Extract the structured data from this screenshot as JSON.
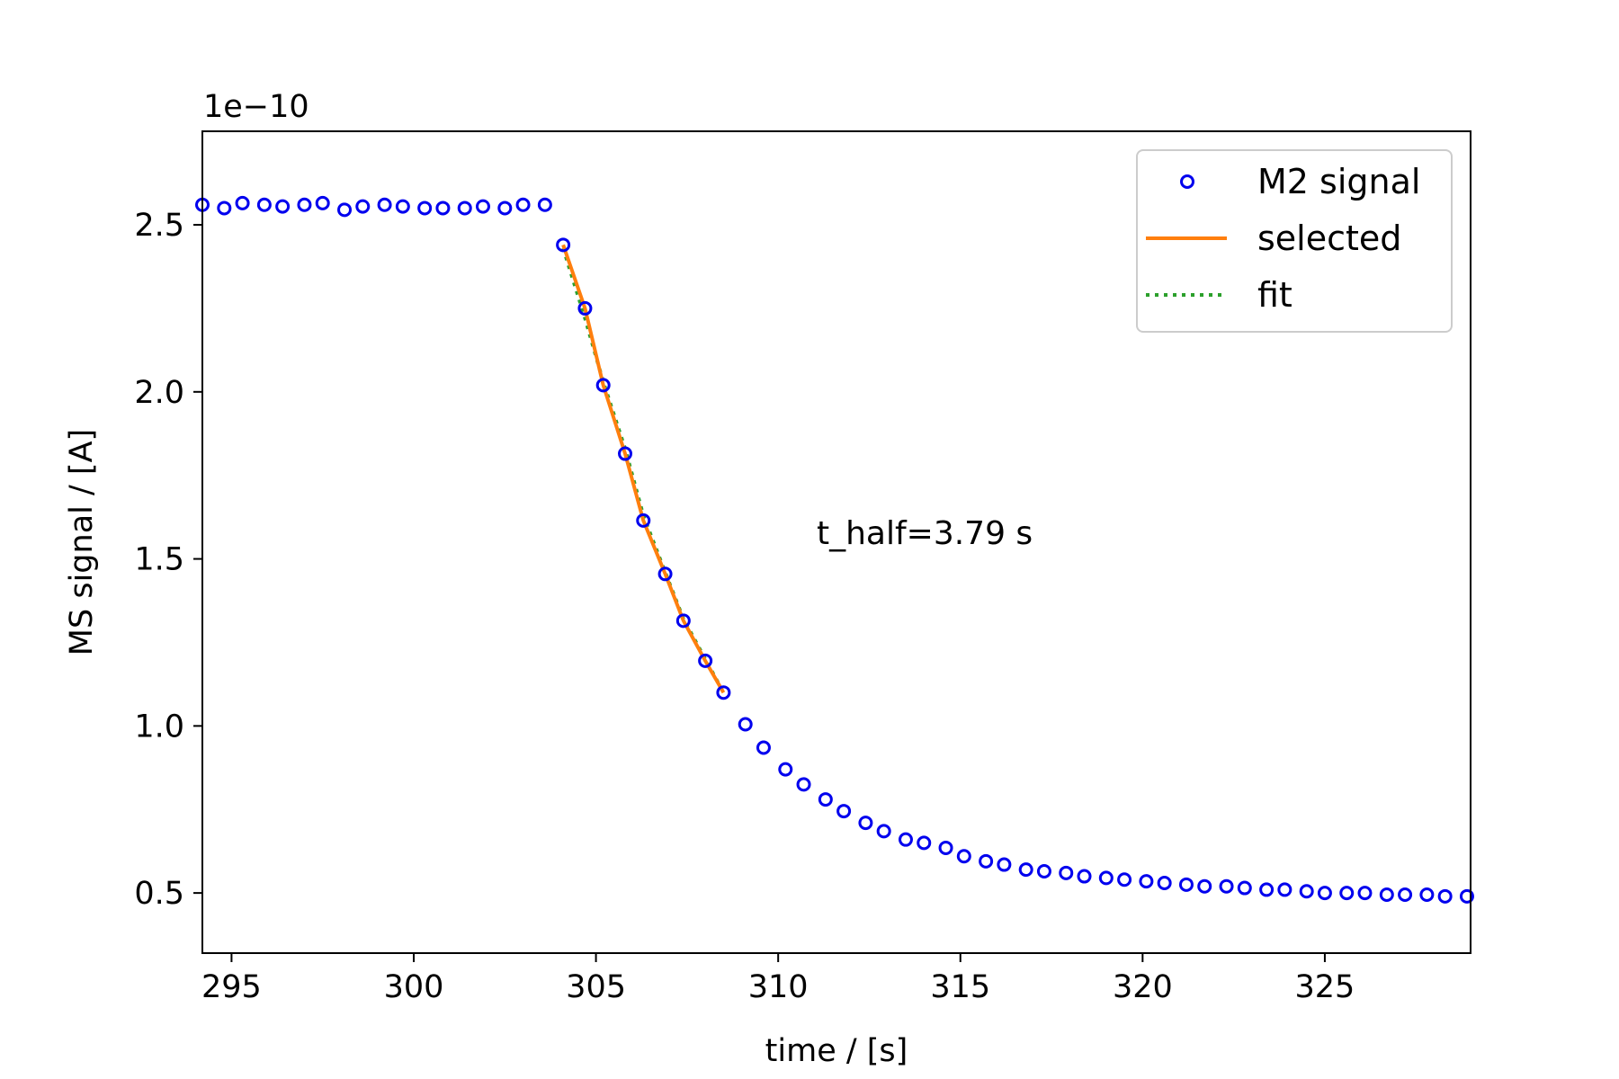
{
  "chart_data": {
    "type": "scatter",
    "title": "",
    "xlabel": "time / [s]",
    "ylabel": "MS signal / [A]",
    "y_offset_label": "1e−10",
    "xlim": [
      294.2,
      329.0
    ],
    "ylim": [
      0.32,
      2.78
    ],
    "x_ticks": [
      295,
      300,
      305,
      310,
      315,
      320,
      325
    ],
    "y_ticks": [
      0.5,
      1.0,
      1.5,
      2.0,
      2.5
    ],
    "x_tick_labels": [
      "295",
      "300",
      "305",
      "310",
      "315",
      "320",
      "325"
    ],
    "y_tick_labels": [
      "0.5",
      "1.0",
      "1.5",
      "2.0",
      "2.5"
    ],
    "grid": false,
    "legend_position": "top-right",
    "annotation": "t_half=3.79 s",
    "colors": {
      "signal": "#0000ee",
      "selected": "#ff7f0e",
      "fit": "#2ca02c"
    },
    "series": [
      {
        "name": "M2 signal",
        "style": "open-circle",
        "x": [
          294.2,
          294.8,
          295.3,
          295.9,
          296.4,
          297.0,
          297.5,
          298.1,
          298.6,
          299.2,
          299.7,
          300.3,
          300.8,
          301.4,
          301.9,
          302.5,
          303.0,
          303.6,
          304.1,
          304.7,
          305.2,
          305.8,
          306.3,
          306.9,
          307.4,
          308.0,
          308.5,
          309.1,
          309.6,
          310.2,
          310.7,
          311.3,
          311.8,
          312.4,
          312.9,
          313.5,
          314.0,
          314.6,
          315.1,
          315.7,
          316.2,
          316.8,
          317.3,
          317.9,
          318.4,
          319.0,
          319.5,
          320.1,
          320.6,
          321.2,
          321.7,
          322.3,
          322.8,
          323.4,
          323.9,
          324.5,
          325.0,
          325.6,
          326.1,
          326.7,
          327.2,
          327.8,
          328.3,
          328.9
        ],
        "y": [
          2.56,
          2.55,
          2.565,
          2.56,
          2.555,
          2.56,
          2.565,
          2.545,
          2.555,
          2.56,
          2.555,
          2.55,
          2.55,
          2.55,
          2.555,
          2.55,
          2.56,
          2.56,
          2.44,
          2.25,
          2.02,
          1.815,
          1.615,
          1.455,
          1.315,
          1.195,
          1.1,
          1.005,
          0.935,
          0.87,
          0.825,
          0.78,
          0.745,
          0.71,
          0.685,
          0.66,
          0.65,
          0.635,
          0.61,
          0.595,
          0.585,
          0.57,
          0.565,
          0.56,
          0.55,
          0.545,
          0.54,
          0.535,
          0.53,
          0.525,
          0.52,
          0.52,
          0.515,
          0.51,
          0.51,
          0.505,
          0.5,
          0.5,
          0.5,
          0.495,
          0.495,
          0.495,
          0.49,
          0.49
        ]
      },
      {
        "name": "selected",
        "style": "solid-line",
        "x": [
          304.1,
          304.7,
          305.2,
          305.8,
          306.3,
          306.9,
          307.4,
          308.0,
          308.5
        ],
        "y": [
          2.44,
          2.25,
          2.02,
          1.815,
          1.615,
          1.455,
          1.315,
          1.195,
          1.1
        ]
      },
      {
        "name": "fit",
        "style": "dotted-line",
        "x": [
          304.1,
          304.7,
          305.2,
          305.8,
          306.3,
          306.9,
          307.4,
          308.0,
          308.5
        ],
        "y": [
          2.43,
          2.22,
          2.03,
          1.83,
          1.63,
          1.46,
          1.32,
          1.2,
          1.1
        ]
      }
    ]
  }
}
